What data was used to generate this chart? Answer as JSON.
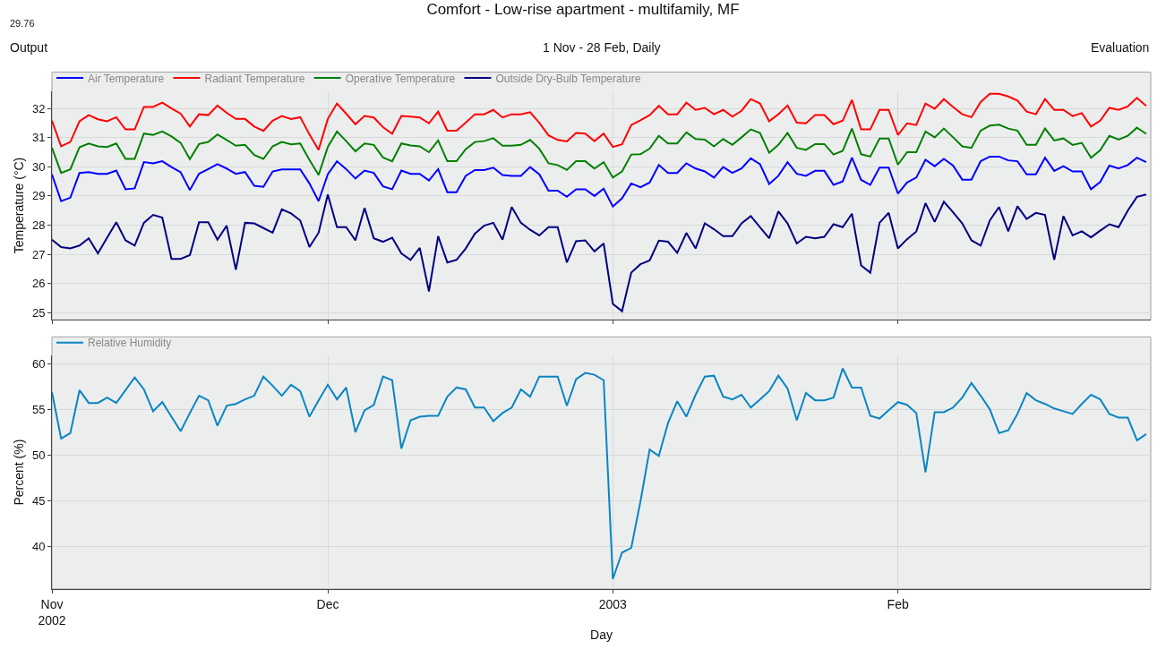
{
  "chart_data": [
    {
      "type": "line",
      "title": "Comfort - Low-rise apartment - multifamily, MF",
      "subtitle": "1 Nov - 28 Feb, Daily",
      "ylabel": "Temperature (°C)",
      "annotations": [
        "29.76",
        "Output",
        "Evaluation"
      ],
      "x": [
        "2002-11-01",
        "2002-11-02",
        "2002-11-03",
        "2002-11-04",
        "2002-11-05",
        "2002-11-06",
        "2002-11-07",
        "2002-11-08",
        "2002-11-09",
        "2002-11-10",
        "2002-11-11",
        "2002-11-12",
        "2002-11-13",
        "2002-11-14",
        "2002-11-15",
        "2002-11-16",
        "2002-11-17",
        "2002-11-18",
        "2002-11-19",
        "2002-11-20",
        "2002-11-21",
        "2002-11-22",
        "2002-11-23",
        "2002-11-24",
        "2002-11-25",
        "2002-11-26",
        "2002-11-27",
        "2002-11-28",
        "2002-11-29",
        "2002-11-30",
        "2002-12-01",
        "2002-12-02",
        "2002-12-03",
        "2002-12-04",
        "2002-12-05",
        "2002-12-06",
        "2002-12-07",
        "2002-12-08",
        "2002-12-09",
        "2002-12-10",
        "2002-12-11",
        "2002-12-12",
        "2002-12-13",
        "2002-12-14",
        "2002-12-15",
        "2002-12-16",
        "2002-12-17",
        "2002-12-18",
        "2002-12-19",
        "2002-12-20",
        "2002-12-21",
        "2002-12-22",
        "2002-12-23",
        "2002-12-24",
        "2002-12-25",
        "2002-12-26",
        "2002-12-27",
        "2002-12-28",
        "2002-12-29",
        "2002-12-30",
        "2002-12-31",
        "2003-01-01",
        "2003-01-02",
        "2003-01-03",
        "2003-01-04",
        "2003-01-05",
        "2003-01-06",
        "2003-01-07",
        "2003-01-08",
        "2003-01-09",
        "2003-01-10",
        "2003-01-11",
        "2003-01-12",
        "2003-01-13",
        "2003-01-14",
        "2003-01-15",
        "2003-01-16",
        "2003-01-17",
        "2003-01-18",
        "2003-01-19",
        "2003-01-20",
        "2003-01-21",
        "2003-01-22",
        "2003-01-23",
        "2003-01-24",
        "2003-01-25",
        "2003-01-26",
        "2003-01-27",
        "2003-01-28",
        "2003-01-29",
        "2003-01-30",
        "2003-01-31",
        "2003-02-01",
        "2003-02-02",
        "2003-02-03",
        "2003-02-04",
        "2003-02-05",
        "2003-02-06",
        "2003-02-07",
        "2003-02-08",
        "2003-02-09",
        "2003-02-10",
        "2003-02-11",
        "2003-02-12",
        "2003-02-13",
        "2003-02-14",
        "2003-02-15",
        "2003-02-16",
        "2003-02-17",
        "2003-02-18",
        "2003-02-19",
        "2003-02-20",
        "2003-02-21",
        "2003-02-22",
        "2003-02-23",
        "2003-02-24",
        "2003-02-25",
        "2003-02-26",
        "2003-02-27",
        "2003-02-28"
      ],
      "series": [
        {
          "name": "Air Temperature",
          "color": "#0000ff",
          "values": [
            29.74,
            28.82,
            28.94,
            29.79,
            29.82,
            29.76,
            29.76,
            29.87,
            29.23,
            29.26,
            30.16,
            30.12,
            30.19,
            29.99,
            29.81,
            29.2,
            29.76,
            29.92,
            30.09,
            29.94,
            29.76,
            29.82,
            29.35,
            29.31,
            29.84,
            29.91,
            29.91,
            29.91,
            29.43,
            28.82,
            29.74,
            30.19,
            29.92,
            29.6,
            29.87,
            29.79,
            29.33,
            29.23,
            29.87,
            29.76,
            29.76,
            29.53,
            29.92,
            29.13,
            29.13,
            29.69,
            29.89,
            29.89,
            29.97,
            29.72,
            29.69,
            29.69,
            29.99,
            29.74,
            29.18,
            29.18,
            28.97,
            29.23,
            29.23,
            29.0,
            29.25,
            28.64,
            28.92,
            29.43,
            29.3,
            29.46,
            30.06,
            29.79,
            29.79,
            30.12,
            29.94,
            29.84,
            29.63,
            29.99,
            29.79,
            29.94,
            30.29,
            30.09,
            29.41,
            29.69,
            30.16,
            29.76,
            29.69,
            29.86,
            29.86,
            29.38,
            29.5,
            30.31,
            29.55,
            29.38,
            29.97,
            29.97,
            29.08,
            29.46,
            29.63,
            30.24,
            30.02,
            30.27,
            30.04,
            29.56,
            29.56,
            30.19,
            30.35,
            30.35,
            30.22,
            30.19,
            29.74,
            29.74,
            30.31,
            29.86,
            30.02,
            29.84,
            29.84,
            29.23,
            29.48,
            30.04,
            29.94,
            30.06,
            30.31,
            30.16
          ]
        },
        {
          "name": "Radiant Temperature",
          "color": "#ff0000",
          "values": [
            31.58,
            30.7,
            30.85,
            31.56,
            31.77,
            31.63,
            31.56,
            31.7,
            31.28,
            31.28,
            32.05,
            32.05,
            32.2,
            32.0,
            31.82,
            31.38,
            31.8,
            31.77,
            32.1,
            31.85,
            31.64,
            31.64,
            31.38,
            31.23,
            31.58,
            31.74,
            31.64,
            31.7,
            31.11,
            30.58,
            31.64,
            32.17,
            31.82,
            31.46,
            31.74,
            31.69,
            31.36,
            31.13,
            31.74,
            31.72,
            31.69,
            31.49,
            31.89,
            31.24,
            31.24,
            31.51,
            31.8,
            31.8,
            31.95,
            31.69,
            31.8,
            31.8,
            31.87,
            31.51,
            31.08,
            30.92,
            30.87,
            31.16,
            31.14,
            30.88,
            31.14,
            30.68,
            30.77,
            31.43,
            31.59,
            31.77,
            32.09,
            31.8,
            31.8,
            32.2,
            31.95,
            32.02,
            31.8,
            31.95,
            31.72,
            31.92,
            32.32,
            32.17,
            31.56,
            31.8,
            32.1,
            31.51,
            31.49,
            31.77,
            31.77,
            31.46,
            31.58,
            32.29,
            31.28,
            31.28,
            31.95,
            31.95,
            31.09,
            31.49,
            31.43,
            32.17,
            31.99,
            32.32,
            32.05,
            31.8,
            31.7,
            32.22,
            32.5,
            32.5,
            32.41,
            32.27,
            31.89,
            31.8,
            32.32,
            31.95,
            31.95,
            31.74,
            31.84,
            31.38,
            31.58,
            32.02,
            31.95,
            32.07,
            32.36,
            32.09
          ]
        },
        {
          "name": "Operative Temperature",
          "color": "#008000",
          "values": [
            30.65,
            29.79,
            29.91,
            30.67,
            30.8,
            30.7,
            30.68,
            30.8,
            30.27,
            30.27,
            31.14,
            31.09,
            31.21,
            31.04,
            30.82,
            30.26,
            30.78,
            30.85,
            31.11,
            30.92,
            30.72,
            30.75,
            30.4,
            30.27,
            30.7,
            30.85,
            30.77,
            30.8,
            30.24,
            29.72,
            30.68,
            31.21,
            30.88,
            30.53,
            30.8,
            30.75,
            30.32,
            30.19,
            30.8,
            30.73,
            30.7,
            30.5,
            30.9,
            30.19,
            30.19,
            30.6,
            30.85,
            30.88,
            30.98,
            30.72,
            30.72,
            30.75,
            30.92,
            30.62,
            30.12,
            30.06,
            29.89,
            30.19,
            30.19,
            29.94,
            30.16,
            29.63,
            29.84,
            30.42,
            30.43,
            30.62,
            31.06,
            30.8,
            30.8,
            31.18,
            30.95,
            30.93,
            30.7,
            30.95,
            30.75,
            31.01,
            31.28,
            31.16,
            30.48,
            30.75,
            31.16,
            30.65,
            30.58,
            30.78,
            30.78,
            30.42,
            30.55,
            31.31,
            30.43,
            30.35,
            30.97,
            30.97,
            30.07,
            30.5,
            30.5,
            31.21,
            31.01,
            31.31,
            31.01,
            30.7,
            30.65,
            31.24,
            31.41,
            31.44,
            31.31,
            31.24,
            30.75,
            30.75,
            31.31,
            30.9,
            30.97,
            30.75,
            30.82,
            30.31,
            30.57,
            31.06,
            30.93,
            31.06,
            31.34,
            31.13
          ]
        },
        {
          "name": "Outside Dry-Bulb Temperature",
          "color": "#000080",
          "values": [
            27.5,
            27.25,
            27.2,
            27.3,
            27.55,
            27.03,
            27.57,
            28.1,
            27.48,
            27.3,
            28.08,
            28.35,
            28.26,
            26.84,
            26.84,
            26.97,
            28.1,
            28.1,
            27.5,
            27.98,
            26.47,
            28.08,
            28.06,
            27.9,
            27.74,
            28.54,
            28.4,
            28.16,
            27.25,
            27.74,
            29.05,
            27.93,
            27.93,
            27.48,
            28.59,
            27.55,
            27.43,
            27.57,
            27.03,
            26.81,
            27.22,
            25.73,
            27.62,
            26.72,
            26.81,
            27.2,
            27.71,
            27.98,
            28.08,
            27.5,
            28.62,
            28.08,
            27.84,
            27.65,
            27.93,
            27.93,
            26.72,
            27.45,
            27.48,
            27.1,
            27.37,
            25.3,
            25.05,
            26.37,
            26.66,
            26.79,
            27.47,
            27.43,
            27.05,
            27.73,
            27.2,
            28.06,
            27.86,
            27.62,
            27.62,
            28.06,
            28.31,
            27.93,
            27.55,
            28.47,
            28.06,
            27.37,
            27.6,
            27.55,
            27.6,
            28.03,
            27.93,
            28.39,
            26.62,
            26.37,
            28.08,
            28.42,
            27.2,
            27.52,
            27.78,
            28.75,
            28.11,
            28.8,
            28.44,
            28.06,
            27.48,
            27.3,
            28.16,
            28.62,
            27.79,
            28.65,
            28.21,
            28.42,
            28.35,
            26.81,
            28.31,
            27.65,
            27.79,
            27.58,
            27.81,
            28.03,
            27.93,
            28.5,
            28.97,
            29.05
          ]
        }
      ],
      "xlim": [
        "2002-11-01",
        "2003-02-28T12:00"
      ],
      "xticks": [
        {
          "value": "2002-11-01",
          "label": null
        },
        {
          "value": "2002-12-01",
          "label": null
        },
        {
          "value": "2003-01-01",
          "label": null
        },
        {
          "value": "2003-02-01",
          "label": null
        }
      ],
      "ylim": [
        24.75,
        32.6
      ],
      "yticks": [
        25,
        26,
        27,
        28,
        29,
        30,
        31,
        32
      ],
      "tick_labels": "y",
      "grid": true,
      "legend": "top left",
      "marker": "none",
      "line_style": "solid"
    },
    {
      "type": "line",
      "xlabel": "Day",
      "ylabel": "Percent (%)",
      "x": [
        "2002-11-01",
        "2002-11-02",
        "2002-11-03",
        "2002-11-04",
        "2002-11-05",
        "2002-11-06",
        "2002-11-07",
        "2002-11-08",
        "2002-11-09",
        "2002-11-10",
        "2002-11-11",
        "2002-11-12",
        "2002-11-13",
        "2002-11-14",
        "2002-11-15",
        "2002-11-16",
        "2002-11-17",
        "2002-11-18",
        "2002-11-19",
        "2002-11-20",
        "2002-11-21",
        "2002-11-22",
        "2002-11-23",
        "2002-11-24",
        "2002-11-25",
        "2002-11-26",
        "2002-11-27",
        "2002-11-28",
        "2002-11-29",
        "2002-11-30",
        "2002-12-01",
        "2002-12-02",
        "2002-12-03",
        "2002-12-04",
        "2002-12-05",
        "2002-12-06",
        "2002-12-07",
        "2002-12-08",
        "2002-12-09",
        "2002-12-10",
        "2002-12-11",
        "2002-12-12",
        "2002-12-13",
        "2002-12-14",
        "2002-12-15",
        "2002-12-16",
        "2002-12-17",
        "2002-12-18",
        "2002-12-19",
        "2002-12-20",
        "2002-12-21",
        "2002-12-22",
        "2002-12-23",
        "2002-12-24",
        "2002-12-25",
        "2002-12-26",
        "2002-12-27",
        "2002-12-28",
        "2002-12-29",
        "2002-12-30",
        "2002-12-31",
        "2003-01-01",
        "2003-01-02",
        "2003-01-03",
        "2003-01-04",
        "2003-01-05",
        "2003-01-06",
        "2003-01-07",
        "2003-01-08",
        "2003-01-09",
        "2003-01-10",
        "2003-01-11",
        "2003-01-12",
        "2003-01-13",
        "2003-01-14",
        "2003-01-15",
        "2003-01-16",
        "2003-01-17",
        "2003-01-18",
        "2003-01-19",
        "2003-01-20",
        "2003-01-21",
        "2003-01-22",
        "2003-01-23",
        "2003-01-24",
        "2003-01-25",
        "2003-01-26",
        "2003-01-27",
        "2003-01-28",
        "2003-01-29",
        "2003-01-30",
        "2003-01-31",
        "2003-02-01",
        "2003-02-02",
        "2003-02-03",
        "2003-02-04",
        "2003-02-05",
        "2003-02-06",
        "2003-02-07",
        "2003-02-08",
        "2003-02-09",
        "2003-02-10",
        "2003-02-11",
        "2003-02-12",
        "2003-02-13",
        "2003-02-14",
        "2003-02-15",
        "2003-02-16",
        "2003-02-17",
        "2003-02-18",
        "2003-02-19",
        "2003-02-20",
        "2003-02-21",
        "2003-02-22",
        "2003-02-23",
        "2003-02-24",
        "2003-02-25",
        "2003-02-26",
        "2003-02-27",
        "2003-02-28"
      ],
      "series": [
        {
          "name": "Relative Humidity",
          "color": "#0a85c2",
          "values": [
            56.9,
            51.8,
            52.4,
            57.1,
            55.7,
            55.7,
            56.3,
            55.7,
            57.1,
            58.5,
            57.2,
            54.8,
            55.8,
            54.2,
            52.6,
            54.6,
            56.5,
            56.0,
            53.2,
            55.4,
            55.6,
            56.1,
            56.5,
            58.6,
            57.6,
            56.5,
            57.7,
            57.0,
            54.2,
            56.0,
            57.7,
            56.1,
            57.4,
            52.5,
            54.9,
            55.5,
            58.6,
            58.2,
            50.7,
            53.8,
            54.2,
            54.3,
            54.3,
            56.4,
            57.4,
            57.2,
            55.2,
            55.2,
            53.7,
            54.6,
            55.2,
            57.2,
            56.4,
            58.6,
            58.6,
            58.6,
            55.4,
            58.3,
            59.0,
            58.8,
            58.2,
            36.4,
            39.3,
            39.8,
            44.9,
            50.6,
            49.9,
            53.5,
            55.9,
            54.2,
            56.6,
            58.6,
            58.7,
            56.4,
            56.1,
            56.6,
            55.2,
            56.1,
            57.0,
            58.7,
            57.3,
            53.8,
            56.8,
            56.0,
            56.0,
            56.3,
            59.5,
            57.4,
            57.4,
            54.3,
            54.0,
            54.9,
            55.8,
            55.5,
            54.6,
            48.1,
            54.7,
            54.7,
            55.2,
            56.3,
            57.9,
            56.5,
            55.0,
            52.4,
            52.7,
            54.5,
            56.8,
            56.0,
            55.6,
            55.1,
            54.8,
            54.5,
            55.6,
            56.6,
            56.1,
            54.5,
            54.1,
            54.1,
            51.6,
            52.3
          ]
        }
      ],
      "xlim": [
        "2002-11-01",
        "2003-02-28T12:00"
      ],
      "xticks": [
        {
          "value": "2002-11-01",
          "label": "Nov\n2002"
        },
        {
          "value": "2002-12-01",
          "label": "Dec"
        },
        {
          "value": "2003-01-01",
          "label": "2003"
        },
        {
          "value": "2003-02-01",
          "label": "Feb"
        }
      ],
      "ylim": [
        35.3,
        60.9
      ],
      "yticks": [
        40,
        45,
        50,
        55,
        60
      ],
      "grid": true,
      "legend": "top left",
      "marker": "none",
      "line_style": "solid"
    }
  ]
}
